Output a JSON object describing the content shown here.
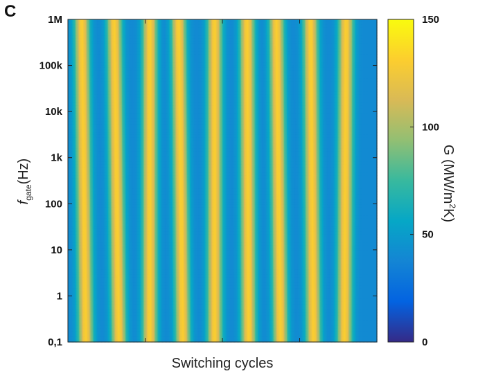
{
  "panel_label": "C",
  "chart_data": {
    "type": "heatmap",
    "title": "",
    "xlabel": "Switching cycles",
    "ylabel": {
      "symbol": "f",
      "subscript": "gate",
      "unit": "(Hz)"
    },
    "y_scale": "log",
    "y_ticks": [
      {
        "value": 0.1,
        "label": "0,1"
      },
      {
        "value": 1,
        "label": "1"
      },
      {
        "value": 10,
        "label": "10"
      },
      {
        "value": 100,
        "label": "100"
      },
      {
        "value": 1000,
        "label": "1k"
      },
      {
        "value": 10000,
        "label": "10k"
      },
      {
        "value": 100000,
        "label": "100k"
      },
      {
        "value": 1000000,
        "label": "1M"
      }
    ],
    "ylim": [
      0.1,
      1000000
    ],
    "x_tick_labels_shown": false,
    "value_unit": "MW/m²K",
    "colorbar": {
      "label": {
        "prefix": "G (MW/m",
        "superscript": "2",
        "suffix": "K)"
      },
      "min": 0,
      "max": 150,
      "ticks": [
        0,
        50,
        100,
        150
      ],
      "colormap": "parula",
      "colors": [
        "#352a87",
        "#0363e1",
        "#1485d4",
        "#06a7c6",
        "#38b99e",
        "#92bf73",
        "#d9ba56",
        "#fcce2e",
        "#f9fb0e"
      ]
    },
    "high_state_value": 130,
    "low_state_value": 40,
    "high_state_bands": [
      {
        "cycle": 1,
        "center_at_y_bottom": 0.058,
        "center_at_y_top": 0.045
      },
      {
        "cycle": 2,
        "center_at_y_bottom": 0.165,
        "center_at_y_top": 0.15
      },
      {
        "cycle": 3,
        "center_at_y_bottom": 0.265,
        "center_at_y_top": 0.265
      },
      {
        "cycle": 4,
        "center_at_y_bottom": 0.372,
        "center_at_y_top": 0.358
      },
      {
        "cycle": 5,
        "center_at_y_bottom": 0.475,
        "center_at_y_top": 0.475
      },
      {
        "cycle": 6,
        "center_at_y_bottom": 0.585,
        "center_at_y_top": 0.58
      },
      {
        "cycle": 7,
        "center_at_y_bottom": 0.688,
        "center_at_y_top": 0.675
      },
      {
        "cycle": 8,
        "center_at_y_bottom": 0.795,
        "center_at_y_top": 0.785
      },
      {
        "cycle": 9,
        "center_at_y_bottom": 0.895,
        "center_at_y_top": 0.9
      }
    ],
    "grid": false,
    "legend": "none"
  }
}
